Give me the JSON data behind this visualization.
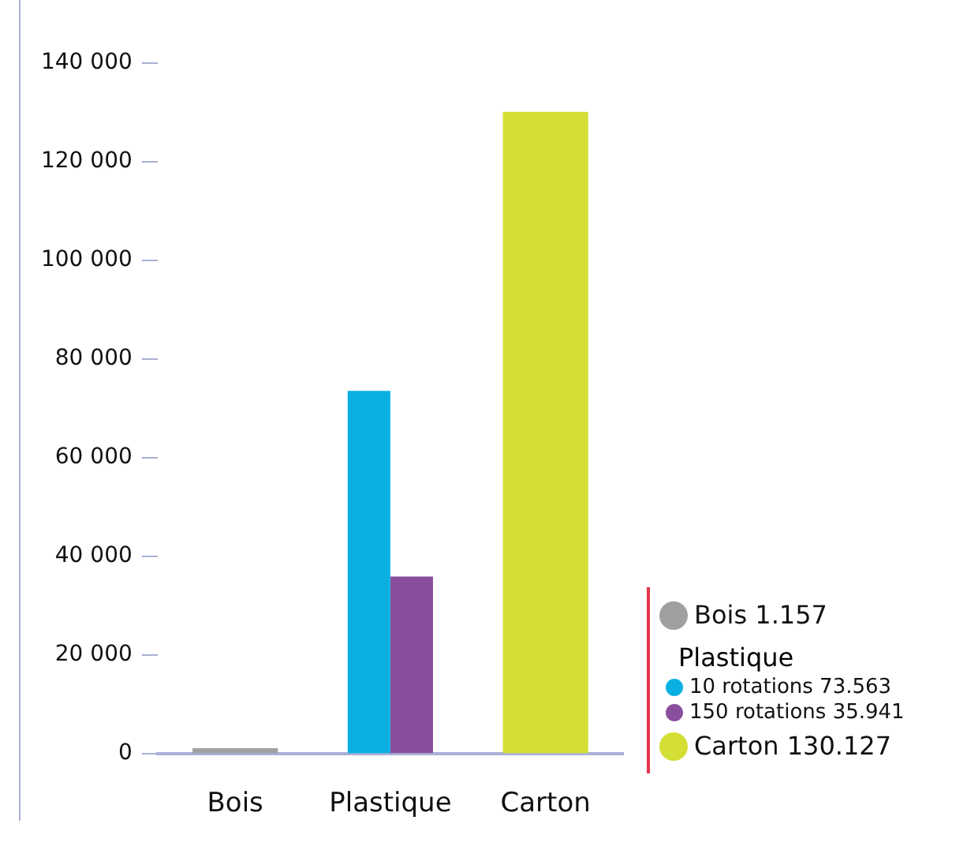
{
  "chart_data": {
    "type": "bar",
    "categories": [
      "Bois",
      "Plastique",
      "Carton"
    ],
    "series": [
      {
        "name": "Bois 1.157",
        "color": "#a0a0a0",
        "values": [
          1157,
          null,
          null
        ]
      },
      {
        "name": "10 rotations 73.563",
        "color": "#0bb0e3",
        "values": [
          null,
          73563,
          null
        ]
      },
      {
        "name": "150 rotations 35.941",
        "color": "#8a4f9c",
        "values": [
          null,
          35941,
          null
        ]
      },
      {
        "name": "Carton 130.127",
        "color": "#d4df35",
        "values": [
          null,
          null,
          130127
        ]
      }
    ],
    "annotations": [
      "Plastique"
    ],
    "ylim": [
      0,
      140000
    ],
    "yticks": [
      {
        "value": 0,
        "label": "0"
      },
      {
        "value": 20000,
        "label": "20 000"
      },
      {
        "value": 40000,
        "label": "40 000"
      },
      {
        "value": 60000,
        "label": "60 000"
      },
      {
        "value": 80000,
        "label": "80 000"
      },
      {
        "value": 100000,
        "label": "100 000"
      },
      {
        "value": 120000,
        "label": "120 000"
      },
      {
        "value": 140000,
        "label": "140 000"
      }
    ],
    "grid": false,
    "legend": "right"
  }
}
